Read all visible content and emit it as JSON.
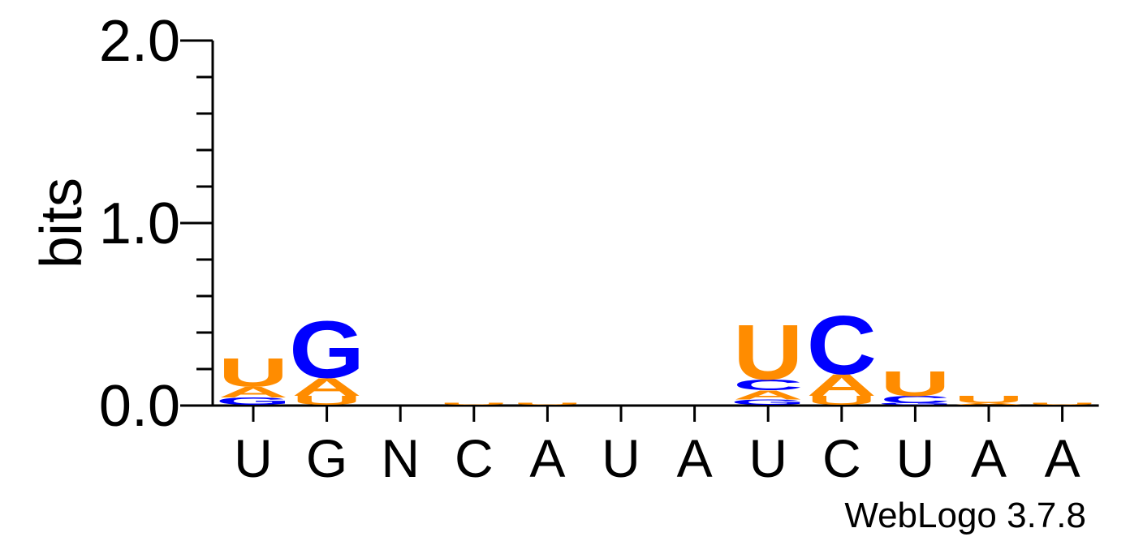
{
  "chart_data": {
    "type": "sequence-logo",
    "ylabel": "bits",
    "ylim": [
      0,
      2.0
    ],
    "y_ticks": [
      "0.0",
      "1.0",
      "2.0"
    ],
    "x_labels": [
      "U",
      "G",
      "N",
      "C",
      "A",
      "U",
      "A",
      "U",
      "C",
      "U",
      "A",
      "A"
    ],
    "footer": "WebLogo 3.7.8",
    "colors": {
      "U": "#FF8C00",
      "A": "#FF8C00",
      "C": "#0000FF",
      "G": "#0000FF"
    },
    "positions": [
      {
        "stack": [
          {
            "letter": "G",
            "bits": 0.04
          },
          {
            "letter": "A",
            "bits": 0.06
          },
          {
            "letter": "U",
            "bits": 0.16
          }
        ]
      },
      {
        "stack": [
          {
            "letter": "U",
            "bits": 0.05
          },
          {
            "letter": "A",
            "bits": 0.1
          },
          {
            "letter": "G",
            "bits": 0.32
          }
        ]
      },
      {
        "stack": []
      },
      {
        "stack": [
          {
            "letter": "U",
            "bits": 0.01
          }
        ]
      },
      {
        "stack": [
          {
            "letter": "U",
            "bits": 0.01
          }
        ]
      },
      {
        "stack": []
      },
      {
        "stack": []
      },
      {
        "stack": [
          {
            "letter": "G",
            "bits": 0.03
          },
          {
            "letter": "A",
            "bits": 0.05
          },
          {
            "letter": "C",
            "bits": 0.06
          },
          {
            "letter": "U",
            "bits": 0.31
          }
        ]
      },
      {
        "stack": [
          {
            "letter": "U",
            "bits": 0.05
          },
          {
            "letter": "A",
            "bits": 0.12
          },
          {
            "letter": "C",
            "bits": 0.33
          }
        ]
      },
      {
        "stack": [
          {
            "letter": "G",
            "bits": 0.01
          },
          {
            "letter": "C",
            "bits": 0.04
          },
          {
            "letter": "U",
            "bits": 0.14
          }
        ]
      },
      {
        "stack": [
          {
            "letter": "A",
            "bits": 0.01
          },
          {
            "letter": "U",
            "bits": 0.04
          }
        ]
      },
      {
        "stack": [
          {
            "letter": "U",
            "bits": 0.01
          }
        ]
      }
    ]
  }
}
